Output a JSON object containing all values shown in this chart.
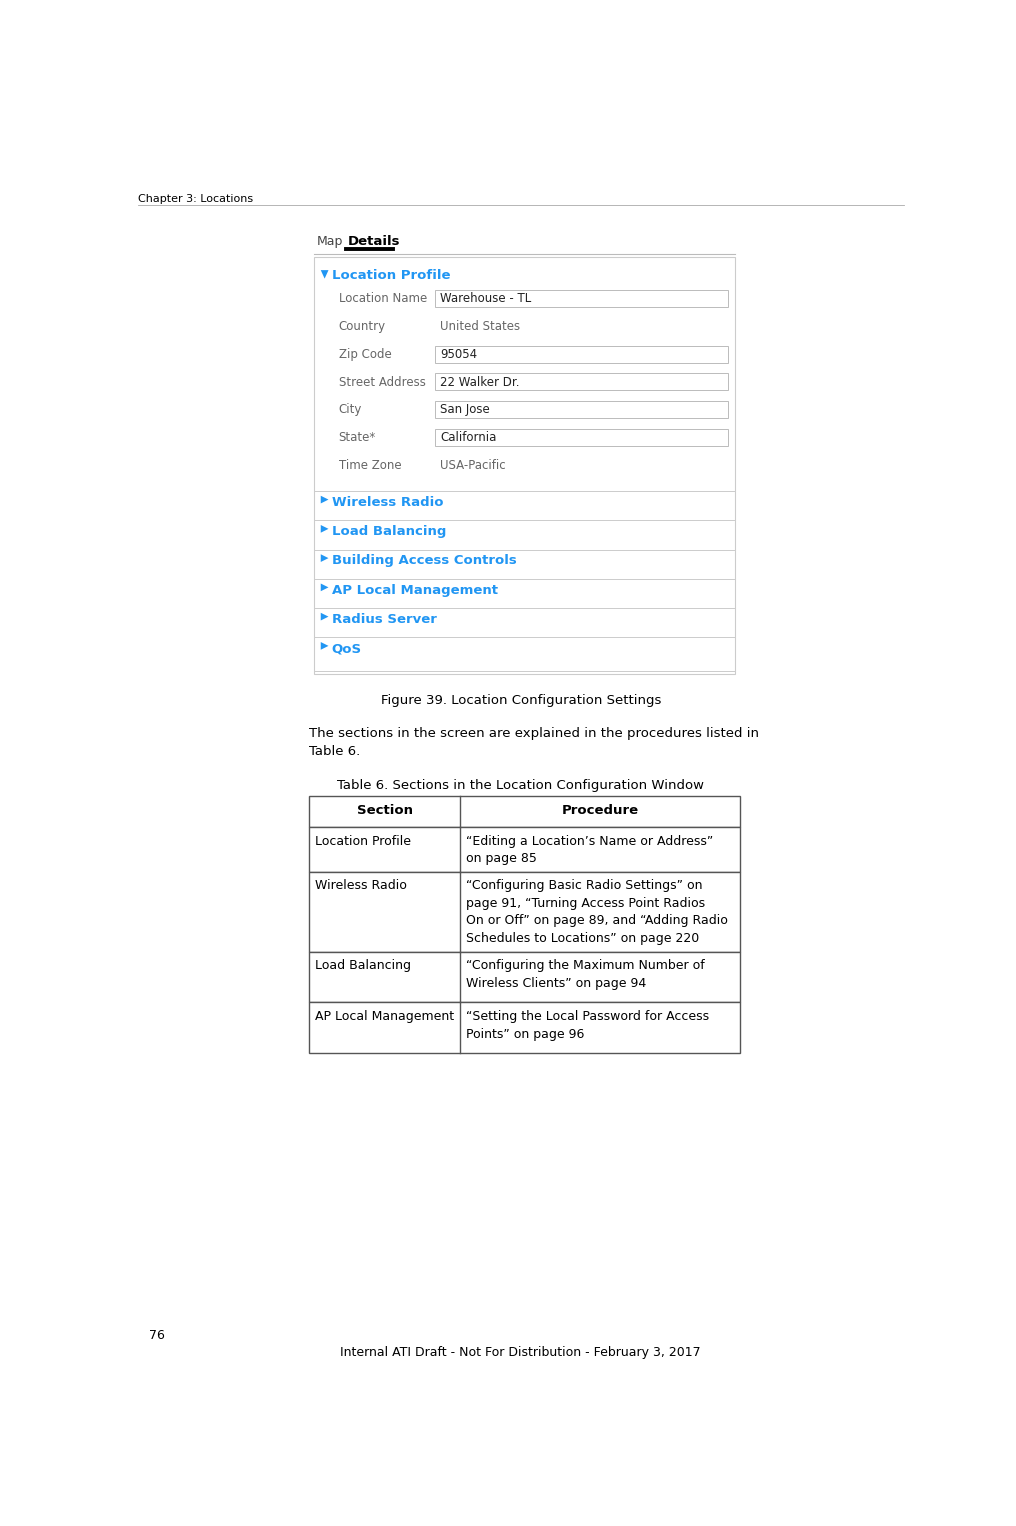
{
  "page_bg": "#ffffff",
  "header_text": "Chapter 3: Locations",
  "page_number": "76",
  "footer_text": "Internal ATI Draft - Not For Distribution - February 3, 2017",
  "figure_caption": "Figure 39. Location Configuration Settings",
  "body_text": "The sections in the screen are explained in the procedures listed in\nTable 6.",
  "table_title": "Table 6. Sections in the Location Configuration Window",
  "tab_map": "Map",
  "tab_details": "Details",
  "section_header_color": "#2196F3",
  "separator_color": "#cccccc",
  "location_profile_label": "Location Profile",
  "fields": [
    {
      "label": "Location Name",
      "value": "Warehouse - TL",
      "has_box": true
    },
    {
      "label": "Country",
      "value": "United States",
      "has_box": false
    },
    {
      "label": "Zip Code",
      "value": "95054",
      "has_box": true
    },
    {
      "label": "Street Address",
      "value": "22 Walker Dr.",
      "has_box": true
    },
    {
      "label": "City",
      "value": "San Jose",
      "has_box": true
    },
    {
      "label": "State*",
      "value": "California",
      "has_box": true
    },
    {
      "label": "Time Zone",
      "value": "USA-Pacific",
      "has_box": false
    }
  ],
  "collapsible_sections": [
    "Wireless Radio",
    "Load Balancing",
    "Building Access Controls",
    "AP Local Management",
    "Radius Server",
    "QoS"
  ],
  "table_headers": [
    "Section",
    "Procedure"
  ],
  "table_rows": [
    {
      "section": "Location Profile",
      "procedure": "“Editing a Location’s Name or Address”\non page 85"
    },
    {
      "section": "Wireless Radio",
      "procedure": "“Configuring Basic Radio Settings” on\npage 91, “Turning Access Point Radios\nOn or Off” on page 89, and “Adding Radio\nSchedules to Locations” on page 220"
    },
    {
      "section": "Load Balancing",
      "procedure": "“Configuring the Maximum Number of\nWireless Clients” on page 94"
    },
    {
      "section": "AP Local Management",
      "procedure": "“Setting the Local Password for Access\nPoints” on page 96"
    }
  ]
}
